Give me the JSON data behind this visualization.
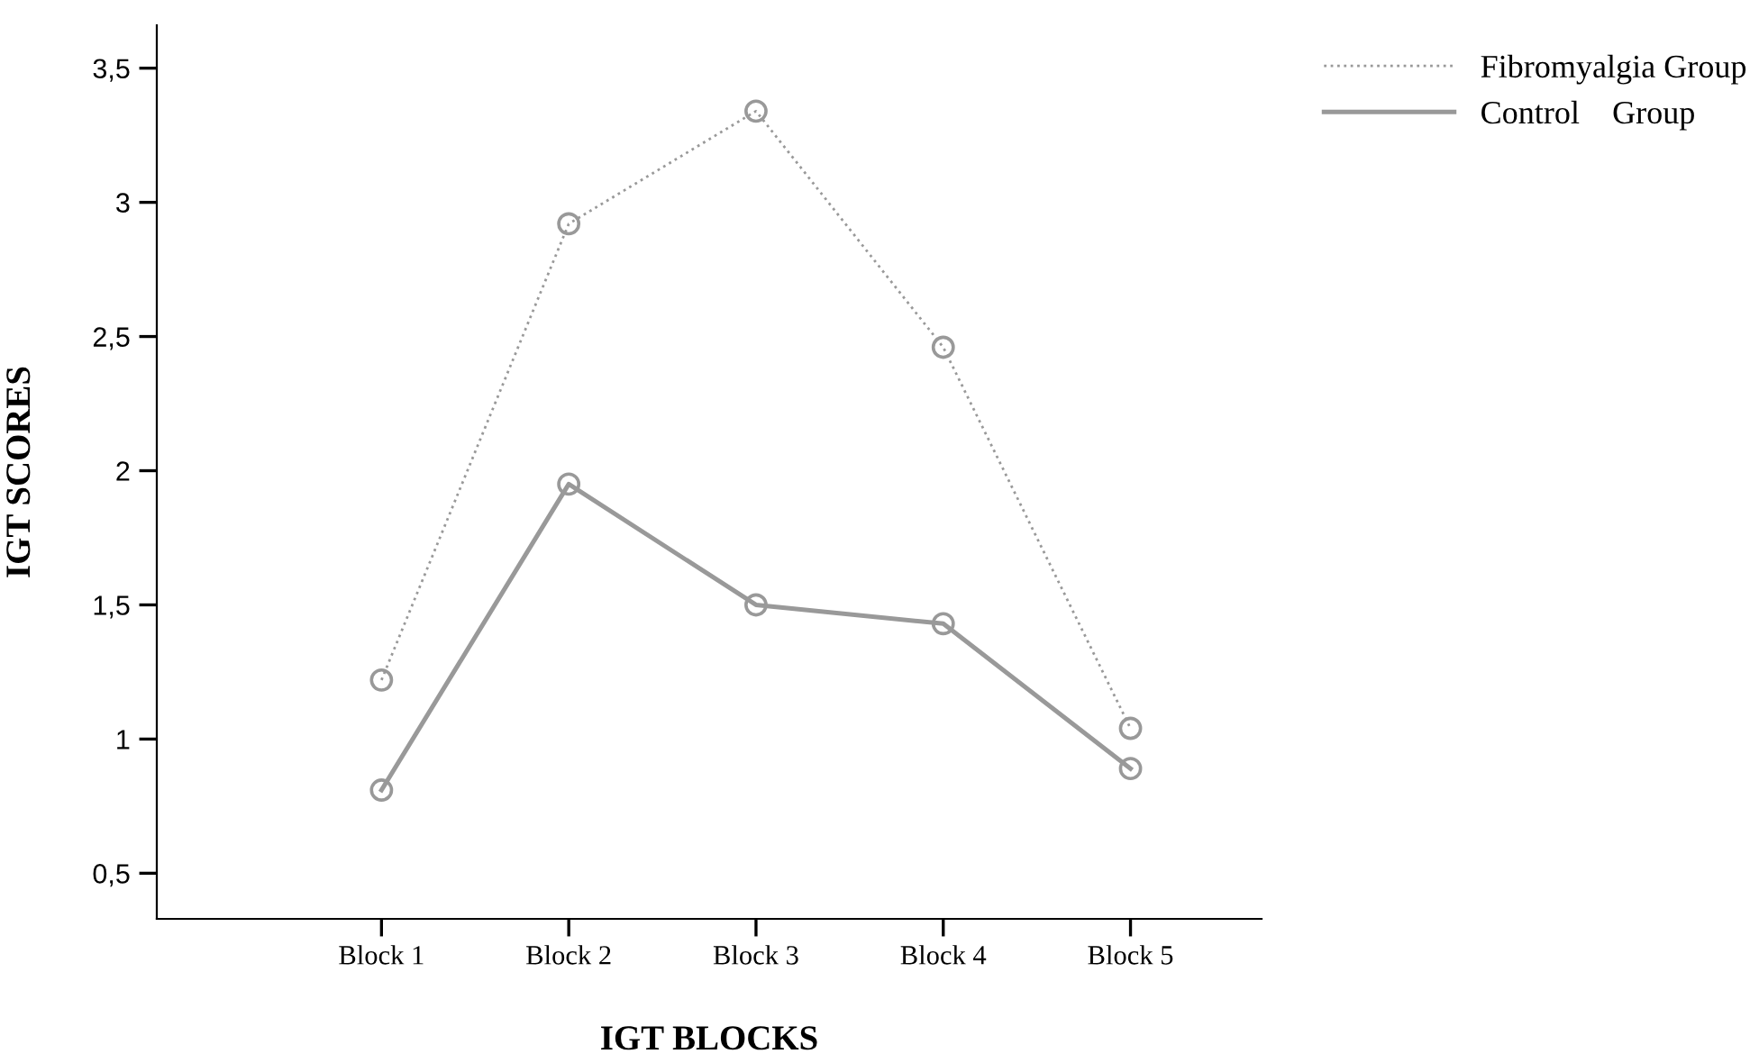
{
  "chart_data": {
    "type": "line",
    "xlabel": "IGT BLOCKS",
    "ylabel": "IGT SCORES",
    "categories": [
      "Block 1",
      "Block 2",
      "Block 3",
      "Block 4",
      "Block 5"
    ],
    "series": [
      {
        "name": "Fibromyalgia Group",
        "color": "#999999",
        "line_style": "dotted",
        "values": [
          1.22,
          2.92,
          3.34,
          2.46,
          1.04
        ]
      },
      {
        "name": "Control    Group",
        "color": "#999999",
        "line_style": "solid",
        "values": [
          0.81,
          1.95,
          1.5,
          1.43,
          0.89
        ]
      }
    ],
    "ylim": [
      0.33,
      3.66
    ],
    "yticks": [
      {
        "value": 0.5,
        "label": "0,5"
      },
      1,
      {
        "value": 1.5,
        "label": "1,5"
      },
      2,
      {
        "value": 2.5,
        "label": "2,5"
      },
      3,
      {
        "value": 3.5,
        "label": "3,5"
      }
    ],
    "marker": "circle",
    "grid": false,
    "legend": "top right"
  }
}
